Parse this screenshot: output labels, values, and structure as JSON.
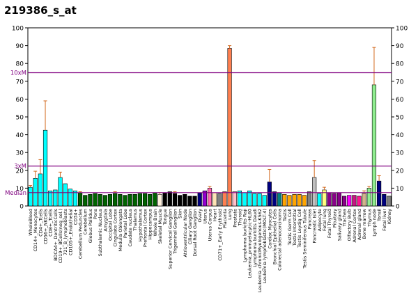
{
  "page": {
    "title": "219386_s_at"
  },
  "chart_data": {
    "type": "bar",
    "title": "219386_s_at",
    "ylim": [
      0,
      100
    ],
    "yticks": [
      0,
      10,
      20,
      30,
      40,
      50,
      60,
      70,
      80,
      90,
      100
    ],
    "grid": false,
    "reference_lines": [
      {
        "label": "10xM",
        "value": 74.8,
        "color": "#800080"
      },
      {
        "label": "3xM",
        "value": 22.4,
        "color": "#800080"
      },
      {
        "label": "Median",
        "value": 7.5,
        "color": "#800080"
      }
    ],
    "xlabels": [
      "WholeBlood",
      "CD14+_Monocytes",
      "CD4+_Tcells",
      "CD56+_NKCells",
      "CD8+_Tcells",
      "BDCA4+_DentriticCells",
      "CD19+_BCells(neg_sel.)",
      "721_B_lymphoblasts",
      "CD105+_Endothelial",
      "CD34+",
      "Cerebellum Peduncles",
      "Cerebellum",
      "Globus Pallidus",
      "Pons",
      "Subthalamic Nucleus",
      "Amygdala",
      "Occipital Lobe",
      "Cingulate Cortex",
      "Medulla Oblongata",
      "Parietal Lobe",
      "Caudate nucleus",
      "Thalamus",
      "Hypothalamus",
      "Prefrontal Cortex",
      "Hippocampus",
      "Whole Brain",
      "Skeletal Muscle",
      "Tongue",
      "Superior Cervical Ganglion",
      "Trigeminal Ganglion",
      "Skin",
      "Atrioventricular Node",
      "Ciliary Ganglion",
      "Dorsal Root Ganglion",
      "Ovary",
      "Uterus",
      "Uterus Corpus",
      "Heart",
      "CD71+_Early Erythroid",
      "Placenta",
      "Lung",
      "Prostate",
      "Thyroid",
      "Lymphoma burkitts Raji",
      "Leukemia_promyelocytic-HL60",
      "Lymphoma burkitts Daudi",
      "Leukemia_chronicMyelogenous-K562",
      "Leukemia lymphoblastic(MOLT-4)",
      "Cardiac Myocytes",
      "Bronchial Epithelial Cells",
      "Colorectal adenocarcinoma",
      "Testis",
      "Testis Germ Cell",
      "Testis Interstitial",
      "Testis Leydig Cell",
      "Testis Seminiferous Tubule",
      "Pancreas",
      "Pancreatic Islet",
      "Adipocyte",
      "Fetal lung",
      "Fetal Thyroid",
      "Pituitary",
      "Salivary gland",
      "Trachea",
      "Olfactory Bulb",
      "Adrenal Cortex",
      "Adrenal gland",
      "Bone marrow",
      "Thymus",
      "Lymph node",
      "Tonsil",
      "Fetal liver",
      "Kidney"
    ],
    "values": [
      10.5,
      15.5,
      18,
      42.5,
      8.5,
      9,
      16,
      12.5,
      9.5,
      8.5,
      7.5,
      6,
      6.5,
      7,
      6.5,
      6,
      6.5,
      7,
      6.5,
      6,
      6.5,
      6.5,
      7,
      7,
      6.5,
      7.5,
      6.5,
      7.5,
      8,
      7,
      6,
      6.5,
      5.5,
      5.5,
      7.5,
      8.5,
      10,
      7.5,
      7,
      8,
      88.5,
      8,
      8.5,
      7.5,
      8.5,
      7,
      7,
      6,
      13.5,
      8,
      7.5,
      6.5,
      6,
      6.5,
      6.5,
      6,
      8,
      16,
      7,
      9,
      7.5,
      7,
      7.5,
      5.5,
      6,
      6,
      5.5,
      7,
      10,
      68,
      14,
      6.5,
      5.5
    ],
    "errors": [
      1,
      4,
      8,
      16.5,
      0,
      0,
      3,
      0,
      0,
      0,
      0.5,
      0,
      0,
      0,
      0,
      0,
      0,
      1,
      0,
      0,
      0,
      0,
      0,
      0,
      0,
      0,
      1,
      0,
      0,
      1,
      0,
      0,
      0,
      0,
      0,
      0,
      1,
      0,
      0,
      0,
      1.5,
      0,
      0,
      0,
      0,
      0,
      0,
      0,
      7,
      0,
      0,
      0,
      0,
      0,
      0,
      0,
      0,
      9.5,
      0,
      1.5,
      0,
      0,
      0,
      0,
      0,
      0,
      0,
      1.5,
      1,
      21,
      3,
      0,
      0
    ],
    "colors": [
      "#00FFFF",
      "#00FFFF",
      "#00FFFF",
      "#00FFFF",
      "#00FFFF",
      "#00FFFF",
      "#00FFFF",
      "#00FFFF",
      "#00FFFF",
      "#00FFFF",
      "#006400",
      "#006400",
      "#006400",
      "#006400",
      "#006400",
      "#006400",
      "#006400",
      "#006400",
      "#006400",
      "#006400",
      "#006400",
      "#006400",
      "#006400",
      "#006400",
      "#006400",
      "#006400",
      "#FFF0DC",
      "#000000",
      "#000000",
      "#000000",
      "#000000",
      "#000000",
      "#000000",
      "#000000",
      "#000080",
      "#9400D3",
      "#FF69B4",
      "#FFE4B5",
      "#808080",
      "#FF7F50",
      "#FF7F50",
      "#FFC0CB",
      "#00FFFF",
      "#00FFFF",
      "#00FFFF",
      "#00FFFF",
      "#00FFFF",
      "#00FFFF",
      "#000080",
      "#000080",
      "#008080",
      "#FFA500",
      "#FFA500",
      "#FFA500",
      "#FFA500",
      "#FFA500",
      "#808080",
      "#C0C0C0",
      "#00FFFF",
      "#FFFF80",
      "#8B008B",
      "#8B008B",
      "#8B008B",
      "#8B008B",
      "#FF00FF",
      "#C71585",
      "#FF1493",
      "#D2B48C",
      "#90EE90",
      "#90EE90",
      "#000080",
      "#000080",
      "#808080"
    ]
  }
}
